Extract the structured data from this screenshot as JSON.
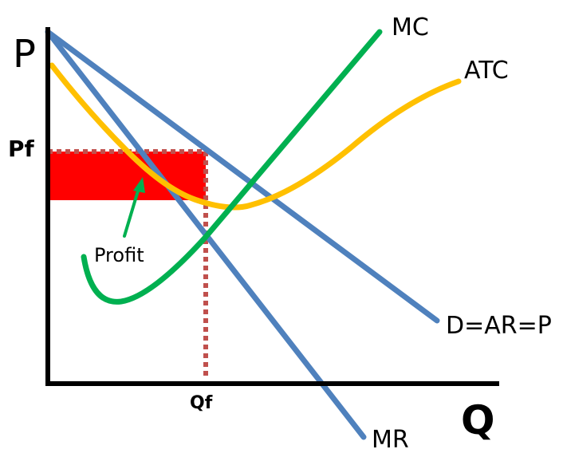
{
  "diagram": {
    "axis_y_label": "P",
    "axis_x_label": "Q",
    "price_label": "Pf",
    "quantity_label": "Qf",
    "profit_label": "Profit",
    "curves": {
      "mc": "MC",
      "atc": "ATC",
      "demand": "D=AR=P",
      "mr": "MR"
    },
    "colors": {
      "mc": "#00b050",
      "atc": "#ffc000",
      "demand": "#4f81bd",
      "mr": "#4f81bd",
      "profit_area": "#ff0000",
      "dotted_guides": "#c0504d",
      "axes": "#000000",
      "profit_arrow": "#00b050"
    }
  }
}
